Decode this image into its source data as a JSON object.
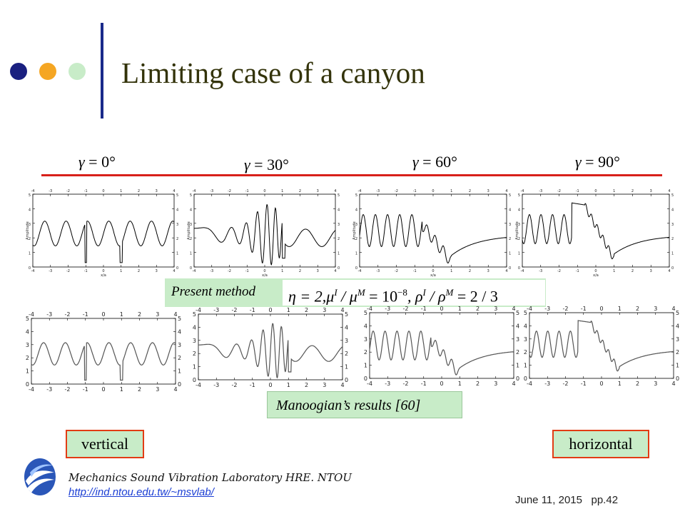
{
  "slide": {
    "title": "Limiting case of a canyon",
    "colors": {
      "title": "#33330a",
      "accent_bar": "#1a2a8a",
      "red_rule": "#d8201a",
      "label_bg": "#c8ecc8",
      "label_border": "#e23c14",
      "dot1": "#1a2080",
      "dot2": "#f5a623",
      "dot3": "#c8ecc8"
    },
    "decor_icons": [
      "dark-blue-dot-icon",
      "orange-dot-icon",
      "light-green-dot-icon"
    ]
  },
  "angles": [
    {
      "symbol": "γ",
      "value": "= 0°"
    },
    {
      "symbol": "γ",
      "value": "= 30°"
    },
    {
      "symbol": "γ",
      "value": "= 60°"
    },
    {
      "symbol": "γ",
      "value": "= 90°"
    }
  ],
  "present_method": {
    "label": "Present method",
    "formula": "η = 2, μ",
    "formula_parts": {
      "eta": "η = 2,",
      "mu_ratio": "μ",
      "mu_sup_I": "I",
      "slash1": " / ",
      "mu2": "μ",
      "mu_sup_M": "M",
      "eq1": " = 10",
      "exp": "−8",
      "comma": ",",
      "rho": " ρ",
      "rho_sup_I": "I",
      "slash2": " / ",
      "rho2": "ρ",
      "rho_sup_M": "M",
      "eq2": " = 2 / 3"
    }
  },
  "manoogian": {
    "label": "Manoogian’s results [60]"
  },
  "buttons": {
    "vertical": "vertical",
    "horizontal": "horizontal"
  },
  "top_plots": {
    "xlabel": "x/a",
    "ylabel": "Amplitude",
    "xticks": [
      "-4",
      "-3",
      "-2",
      "-1",
      "0",
      "1",
      "2",
      "3",
      "4"
    ],
    "yticks": [
      "0",
      "1",
      "2",
      "3",
      "4",
      "5"
    ]
  },
  "bottom_plots": {
    "xticks": [
      "-4",
      "-3",
      "-2",
      "-1",
      "0",
      "1",
      "2",
      "3",
      "4"
    ],
    "yticks": [
      "0",
      "1",
      "2",
      "3",
      "4",
      "5"
    ]
  },
  "footer": {
    "lab": "Mechanics Sound Vibration Laboratory HRE. NTOU",
    "url": "http://ind.ntou.edu.tw/~msvlab/",
    "date": "June 11, 2015",
    "page": "pp.42",
    "logo_icon": "ntou-wave-logo-icon"
  }
}
